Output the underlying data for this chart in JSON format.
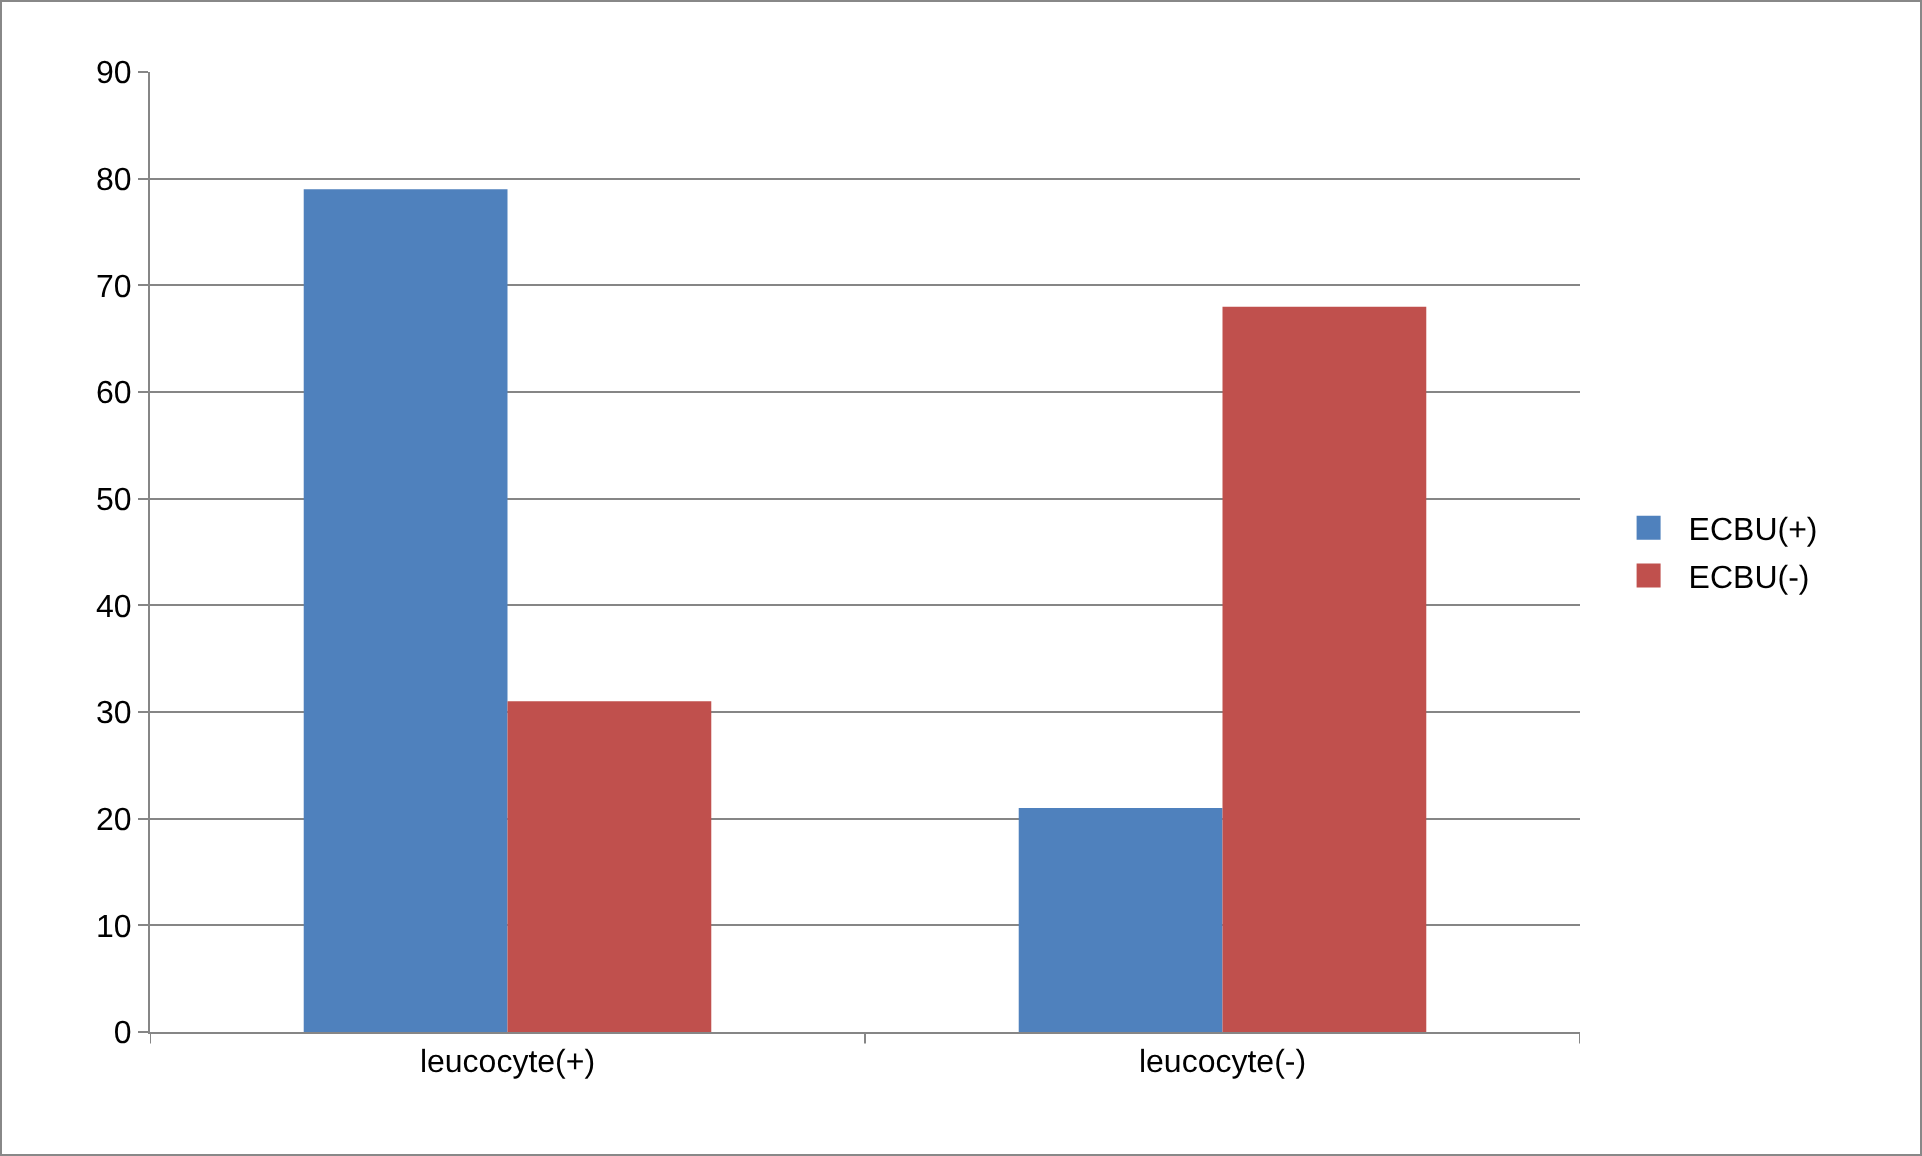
{
  "chart_data": {
    "type": "bar",
    "categories": [
      "leucocyte(+)",
      "leucocyte(-)"
    ],
    "series": [
      {
        "name": "ECBU(+)",
        "color": "#4f81bd",
        "values": [
          79,
          21
        ]
      },
      {
        "name": "ECBU(-)",
        "color": "#c0504d",
        "values": [
          31,
          68
        ]
      }
    ],
    "ylim": [
      0,
      90
    ],
    "yticks": [
      0,
      10,
      20,
      30,
      40,
      50,
      60,
      70,
      80,
      90
    ],
    "grid": "y",
    "legend": "right"
  }
}
